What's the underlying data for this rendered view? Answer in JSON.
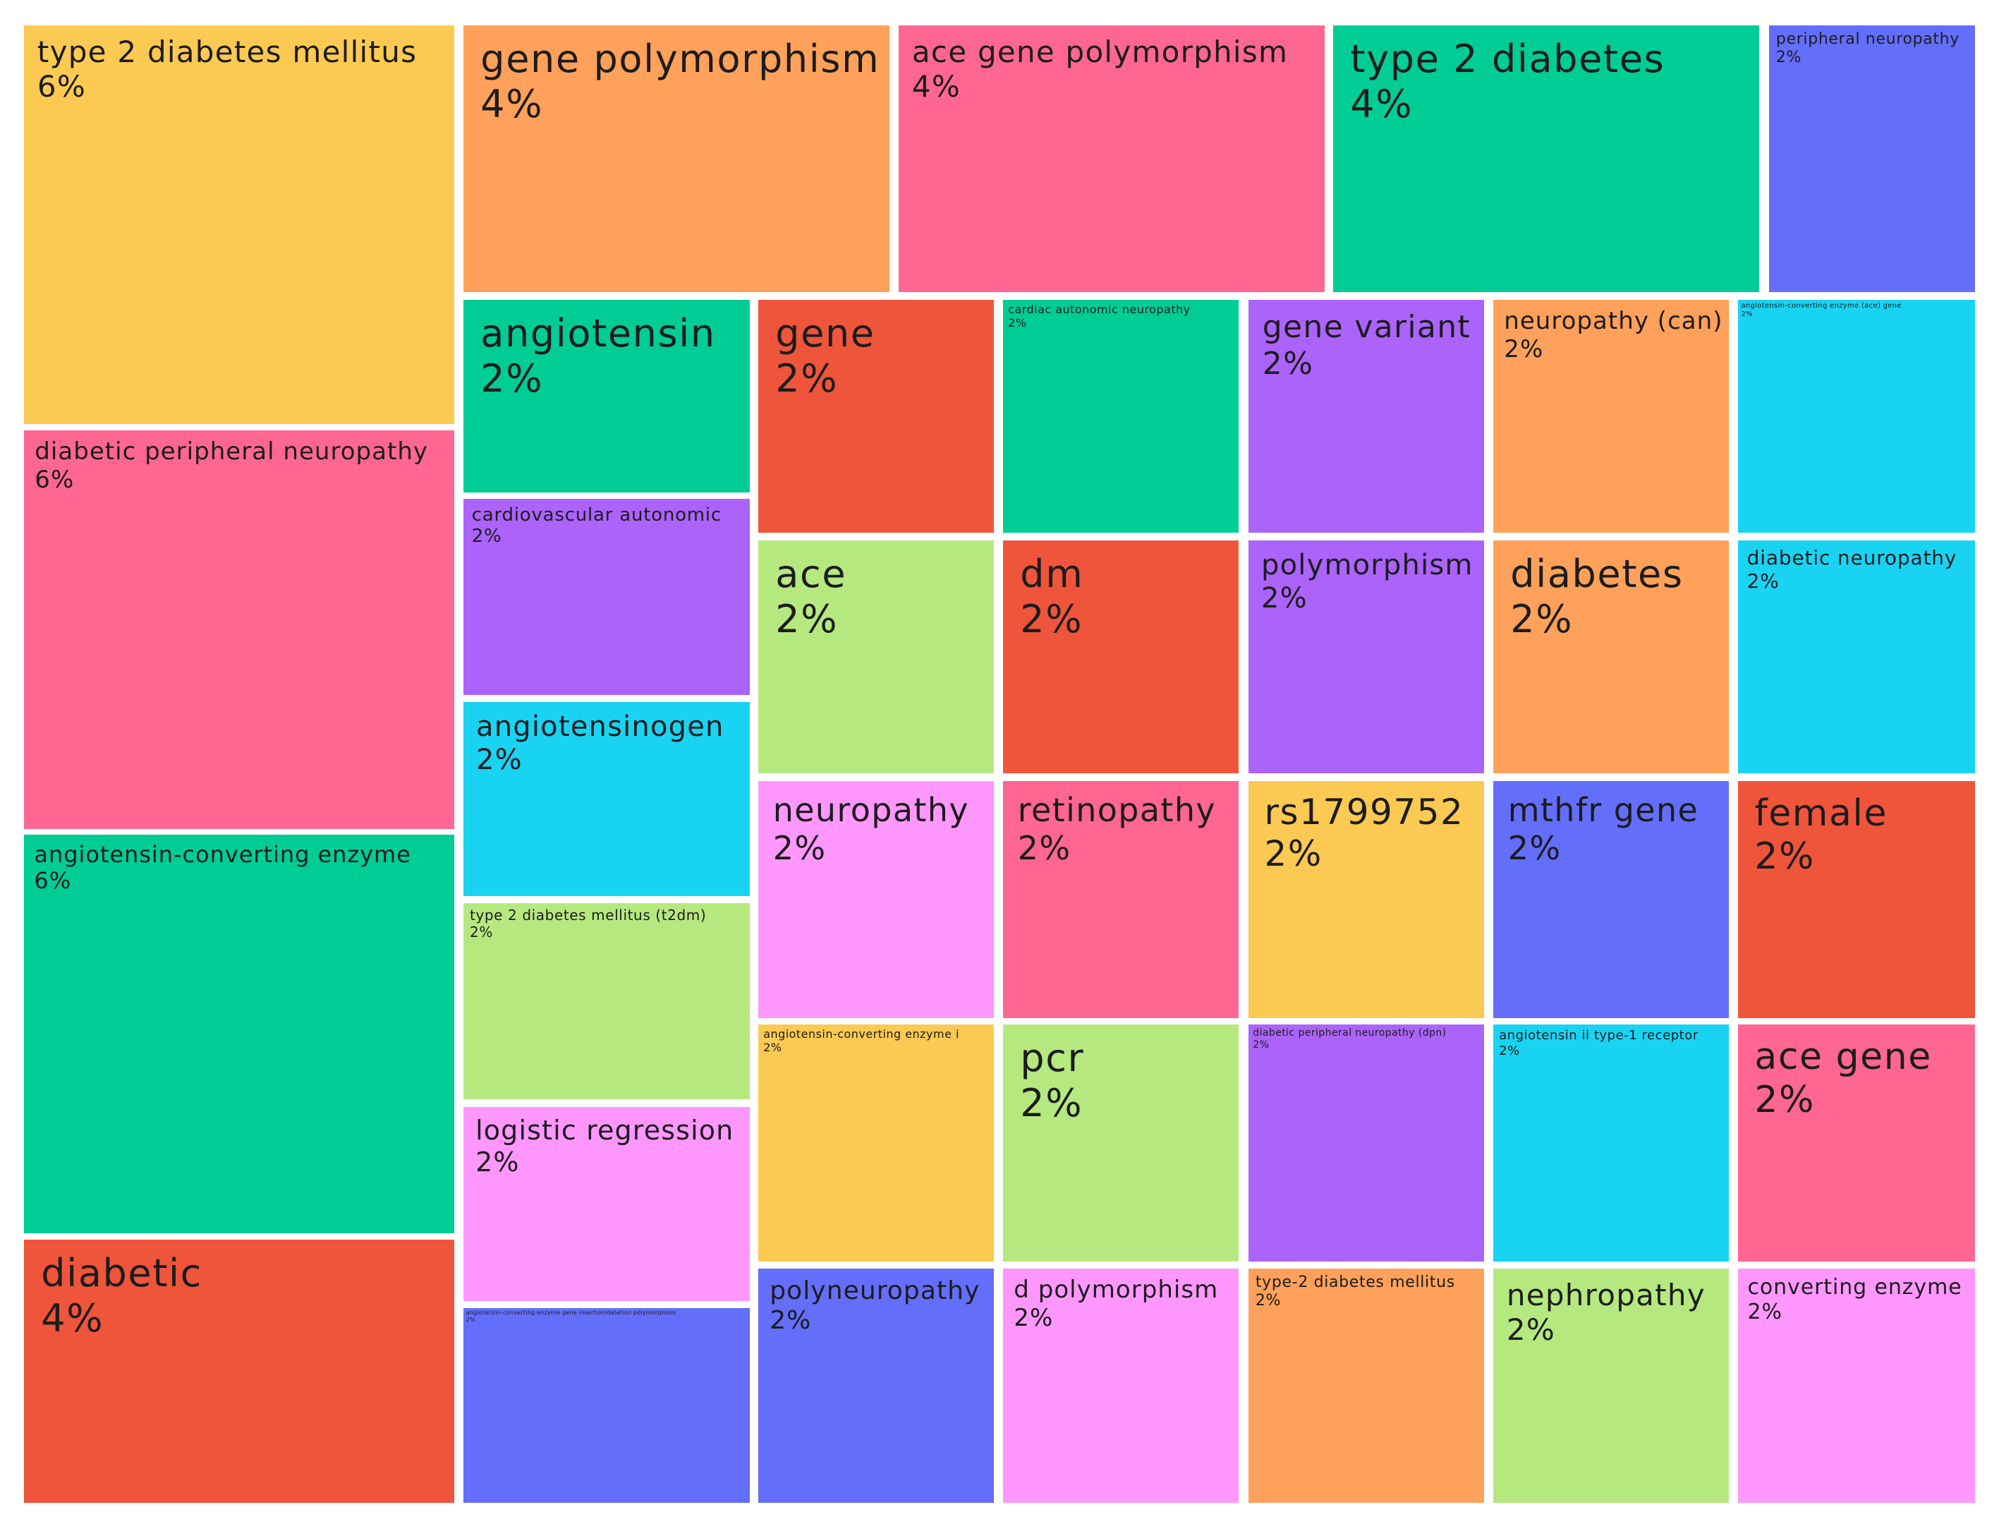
{
  "colors": {
    "yellow": "#FCC952",
    "orange": "#FFA15A",
    "pink": "#FF6692",
    "green": "#00CC96",
    "blue": "#636EFA",
    "red": "#EF553B",
    "purple": "#AB63FA",
    "cyan": "#19D3F3",
    "lime": "#B6E880",
    "magenta": "#FF97FF"
  },
  "chart_data": {
    "type": "treemap",
    "title": "",
    "items": [
      {
        "label": "type 2 diabetes mellitus",
        "value_text": "6%",
        "value": 6,
        "color": "#FCC952"
      },
      {
        "label": "diabetic peripheral neuropathy",
        "value_text": "6%",
        "value": 6,
        "color": "#FF6692"
      },
      {
        "label": "angiotensin-converting enzyme",
        "value_text": "6%",
        "value": 6,
        "color": "#00CC96"
      },
      {
        "label": "diabetic",
        "value_text": "4%",
        "value": 4,
        "color": "#EF553B"
      },
      {
        "label": "gene polymorphism",
        "value_text": "4%",
        "value": 4,
        "color": "#FFA15A"
      },
      {
        "label": "ace gene polymorphism",
        "value_text": "4%",
        "value": 4,
        "color": "#FF6692"
      },
      {
        "label": "type 2 diabetes",
        "value_text": "4%",
        "value": 4,
        "color": "#00CC96"
      },
      {
        "label": "peripheral neuropathy",
        "value_text": "2%",
        "value": 2,
        "color": "#636EFA"
      },
      {
        "label": "angiotensin",
        "value_text": "2%",
        "value": 2,
        "color": "#00CC96"
      },
      {
        "label": "cardiovascular autonomic",
        "value_text": "2%",
        "value": 2,
        "color": "#AB63FA"
      },
      {
        "label": "angiotensinogen",
        "value_text": "2%",
        "value": 2,
        "color": "#19D3F3"
      },
      {
        "label": "type 2 diabetes mellitus (t2dm)",
        "value_text": "2%",
        "value": 2,
        "color": "#B6E880"
      },
      {
        "label": "logistic regression",
        "value_text": "2%",
        "value": 2,
        "color": "#FF97FF"
      },
      {
        "label": "angiotensin-converting enzyme gene insertion/deletion polymorphism",
        "value_text": "2%",
        "value": 2,
        "color": "#636EFA"
      },
      {
        "label": "gene",
        "value_text": "2%",
        "value": 2,
        "color": "#EF553B"
      },
      {
        "label": "cardiac autonomic neuropathy",
        "value_text": "2%",
        "value": 2,
        "color": "#00CC96"
      },
      {
        "label": "gene variant",
        "value_text": "2%",
        "value": 2,
        "color": "#AB63FA"
      },
      {
        "label": "neuropathy (can)",
        "value_text": "2%",
        "value": 2,
        "color": "#FFA15A"
      },
      {
        "label": "angiotensin-converting enzyme (ace) gene",
        "value_text": "2%",
        "value": 2,
        "color": "#19D3F3"
      },
      {
        "label": "ace",
        "value_text": "2%",
        "value": 2,
        "color": "#B6E880"
      },
      {
        "label": "dm",
        "value_text": "2%",
        "value": 2,
        "color": "#EF553B"
      },
      {
        "label": "polymorphism",
        "value_text": "2%",
        "value": 2,
        "color": "#AB63FA"
      },
      {
        "label": "diabetes",
        "value_text": "2%",
        "value": 2,
        "color": "#FFA15A"
      },
      {
        "label": "diabetic neuropathy",
        "value_text": "2%",
        "value": 2,
        "color": "#19D3F3"
      },
      {
        "label": "neuropathy",
        "value_text": "2%",
        "value": 2,
        "color": "#FF97FF"
      },
      {
        "label": "retinopathy",
        "value_text": "2%",
        "value": 2,
        "color": "#FF6692"
      },
      {
        "label": "rs1799752",
        "value_text": "2%",
        "value": 2,
        "color": "#FCC952"
      },
      {
        "label": "mthfr gene",
        "value_text": "2%",
        "value": 2,
        "color": "#636EFA"
      },
      {
        "label": "female",
        "value_text": "2%",
        "value": 2,
        "color": "#EF553B"
      },
      {
        "label": "angiotensin-converting enzyme i",
        "value_text": "2%",
        "value": 2,
        "color": "#FCC952"
      },
      {
        "label": "pcr",
        "value_text": "2%",
        "value": 2,
        "color": "#B6E880"
      },
      {
        "label": "diabetic peripheral neuropathy (dpn)",
        "value_text": "2%",
        "value": 2,
        "color": "#AB63FA"
      },
      {
        "label": "angiotensin ii type-1 receptor",
        "value_text": "2%",
        "value": 2,
        "color": "#19D3F3"
      },
      {
        "label": "ace gene",
        "value_text": "2%",
        "value": 2,
        "color": "#FF6692"
      },
      {
        "label": "polyneuropathy",
        "value_text": "2%",
        "value": 2,
        "color": "#636EFA"
      },
      {
        "label": "d polymorphism",
        "value_text": "2%",
        "value": 2,
        "color": "#FF97FF"
      },
      {
        "label": "type-2 diabetes mellitus",
        "value_text": "2%",
        "value": 2,
        "color": "#FFA15A"
      },
      {
        "label": "nephropathy",
        "value_text": "2%",
        "value": 2,
        "color": "#B6E880"
      },
      {
        "label": "converting enzyme",
        "value_text": "2%",
        "value": 2,
        "color": "#FF97FF"
      }
    ]
  }
}
